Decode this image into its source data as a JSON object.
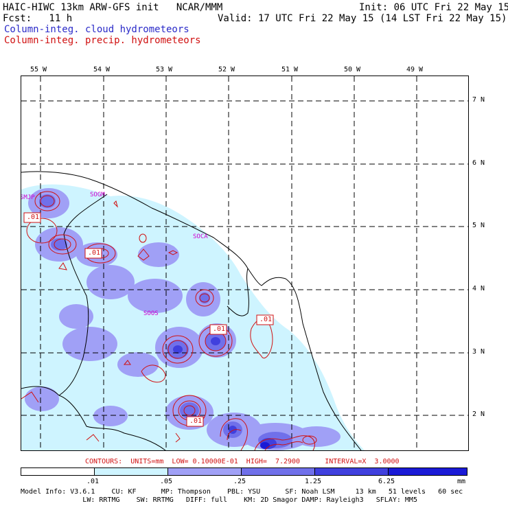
{
  "header": {
    "line1_left": "HAIC-HIWC 13km ARW-GFS init   NCAR/MMM",
    "line1_right": "Init: 06 UTC Fri 22 May 15",
    "line2_left": "Fcst:   11 h",
    "line2_right": "Valid: 17 UTC Fri 22 May 15 (14 LST Fri 22 May 15)",
    "legend_cloud": "Column-integ. cloud hydrometeors",
    "legend_precip": "Column-integ. precip. hydrometeors"
  },
  "map": {
    "lon_labels": [
      "55 W",
      "54 W",
      "53 W",
      "52 W",
      "51 W",
      "50 W",
      "49 W"
    ],
    "lat_labels": [
      "7 N",
      "6 N",
      "5 N",
      "4 N",
      "3 N",
      "2 N"
    ],
    "stations": [
      "SMJP",
      "SOGM",
      "SOCA",
      "SOOS"
    ],
    "contour_labels": [
      ".01",
      ".01",
      ".01",
      ".01",
      ".01"
    ],
    "colors": {
      "light": "#cef4ff",
      "level1": "#a0a0f6",
      "level2": "#7070ea",
      "level3": "#4040de",
      "level4": "#1a1ad6",
      "contour": "#d01010",
      "station": "#d000d0"
    }
  },
  "footer": {
    "contours_line": "CONTOURS:  UNITS=mm  LOW= 0.10000E-01  HIGH=  7.2900      INTERVAL=X  3.0000",
    "colorbar_ticks": [
      ".01",
      ".05",
      ".25",
      "1.25",
      "6.25"
    ],
    "colorbar_unit": "mm",
    "colorbar_colors": [
      "#ffffff",
      "#cef4ff",
      "#a0a0f6",
      "#7070ea",
      "#4040de",
      "#1a1ad6"
    ],
    "model_info_1": "Model Info: V3.6.1    CU: KF      MP: Thompson    PBL: YSU      SF: Noah LSM     13 km   51 levels   60 sec",
    "model_info_2": "               LW: RRTMG    SW: RRTMG   DIFF: full    KM: 2D Smagor DAMP: Rayleigh3   SFLAY: MM5"
  }
}
